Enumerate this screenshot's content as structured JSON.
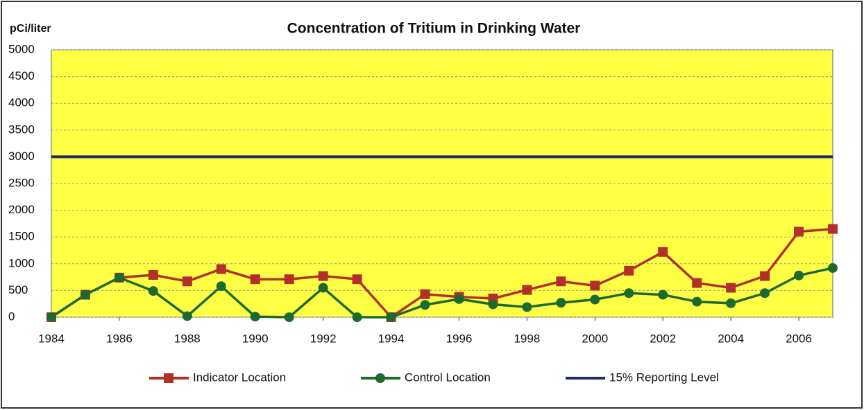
{
  "chart_data": {
    "type": "line",
    "title": "Concentration of Tritium in Drinking Water",
    "y_label": "pCi/liter",
    "x": [
      1984,
      1985,
      1986,
      1987,
      1988,
      1989,
      1990,
      1991,
      1992,
      1993,
      1994,
      1995,
      1996,
      1997,
      1998,
      1999,
      2000,
      2001,
      2002,
      2003,
      2004,
      2005,
      2006,
      2007
    ],
    "xlim": [
      1984,
      2007
    ],
    "xticks": [
      1984,
      1986,
      1988,
      1990,
      1992,
      1994,
      1996,
      1998,
      2000,
      2002,
      2004,
      2006
    ],
    "ylim": [
      0,
      5000
    ],
    "yticks": [
      0,
      500,
      1000,
      1500,
      2000,
      2500,
      3000,
      3500,
      4000,
      4500,
      5000
    ],
    "grid": true,
    "legend": "bottom",
    "background": "#ffff44",
    "series": [
      {
        "name": "Indicator Location",
        "color": "#b3302a",
        "marker": "square",
        "values": [
          0,
          420,
          740,
          790,
          670,
          900,
          710,
          710,
          770,
          710,
          0,
          430,
          380,
          350,
          510,
          670,
          590,
          870,
          1220,
          640,
          550,
          770,
          1600,
          1650
        ]
      },
      {
        "name": "Control Location",
        "color": "#1d6a2e",
        "marker": "circle",
        "values": [
          0,
          420,
          740,
          490,
          20,
          580,
          10,
          0,
          550,
          0,
          0,
          230,
          340,
          240,
          190,
          270,
          330,
          450,
          420,
          290,
          260,
          450,
          780,
          920
        ]
      },
      {
        "name": "15% Reporting Level",
        "color": "#1f2a6b",
        "marker": "none",
        "values": [
          3000,
          3000,
          3000,
          3000,
          3000,
          3000,
          3000,
          3000,
          3000,
          3000,
          3000,
          3000,
          3000,
          3000,
          3000,
          3000,
          3000,
          3000,
          3000,
          3000,
          3000,
          3000,
          3000,
          3000
        ]
      }
    ]
  }
}
